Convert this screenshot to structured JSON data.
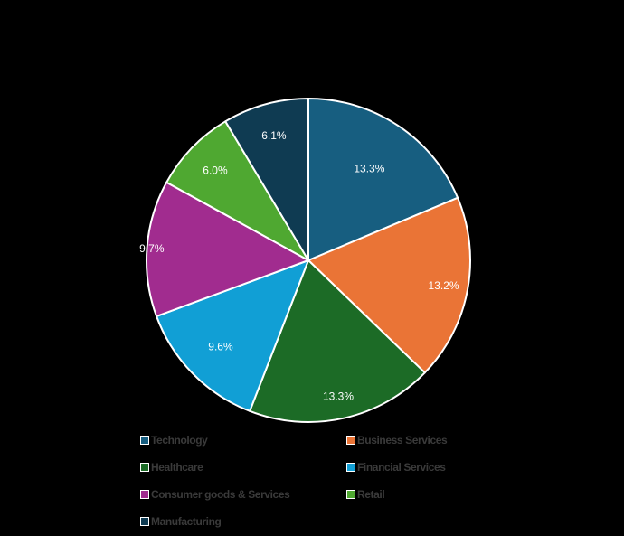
{
  "chart_data": {
    "type": "pie",
    "title": "",
    "categories": [
      "Technology",
      "Business Services",
      "Healthcare",
      "Financial Services",
      "Consumer goods & Services",
      "Retail",
      "Manufacturing"
    ],
    "values": [
      13.3,
      13.2,
      13.3,
      9.6,
      9.7,
      6.0,
      6.1
    ],
    "labels": [
      "13.3%",
      "13.2%",
      "13.3%",
      "9.6%",
      "9.7%",
      "6.0%",
      "6.1%"
    ],
    "colors": [
      "#175e80",
      "#ea7436",
      "#1c6b26",
      "#119fd5",
      "#a12c8f",
      "#4fa831",
      "#0f3b52"
    ],
    "start_angle": "12 o'clock",
    "direction": "clockwise",
    "legend_position": "bottom"
  },
  "legend": {
    "items": [
      {
        "label": "Technology",
        "color": "#175e80"
      },
      {
        "label": "Business Services",
        "color": "#ea7436"
      },
      {
        "label": "Healthcare",
        "color": "#1c6b26"
      },
      {
        "label": "Financial Services",
        "color": "#119fd5"
      },
      {
        "label": "Consumer goods & Services",
        "color": "#a12c8f"
      },
      {
        "label": "Retail",
        "color": "#4fa831"
      },
      {
        "label": "Manufacturing",
        "color": "#0f3b52"
      }
    ]
  }
}
